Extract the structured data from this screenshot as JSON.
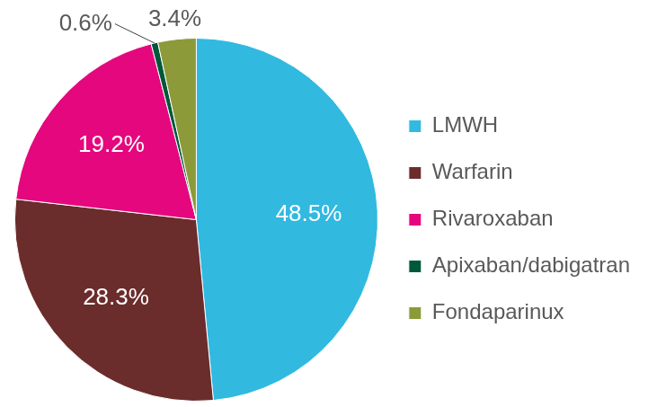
{
  "chart_data": {
    "type": "pie",
    "categories": [
      "LMWH",
      "Warfarin",
      "Rivaroxaban",
      "Apixaban/dabigatran",
      "Fondaparinux"
    ],
    "values": [
      48.5,
      28.3,
      19.2,
      0.6,
      3.4
    ],
    "value_labels": [
      "48.5%",
      "28.3%",
      "19.2%",
      "0.6%",
      "3.4%"
    ],
    "colors": [
      "#31b9e0",
      "#6b2c2c",
      "#e5077e",
      "#00583a",
      "#8c9a3a"
    ],
    "legend": "right",
    "data_labels": true
  }
}
